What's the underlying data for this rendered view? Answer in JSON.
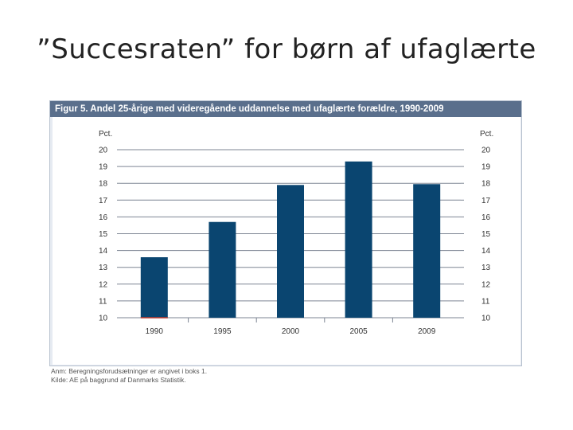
{
  "slide": {
    "title": "”Succesraten” for børn af ufaglærte"
  },
  "figure": {
    "header": "Figur 5. Andel 25-årige med videregående uddannelse med ufaglærte forældre, 1990-2009",
    "note": "Anm: Beregningsforudsætninger er angivet i boks 1.",
    "source": "Kilde: AE på baggrund af Danmarks Statistik."
  },
  "colors": {
    "bar": "#0a4570",
    "header_bg": "#5a6f8c",
    "frame_bg": "#e6ebf2",
    "axis_accent": "#c0392b"
  },
  "chart_data": {
    "type": "bar",
    "categories": [
      "1990",
      "1995",
      "2000",
      "2005",
      "2009"
    ],
    "values": [
      13.6,
      15.7,
      17.9,
      19.3,
      17.95
    ],
    "title": "Figur 5. Andel 25-årige med videregående uddannelse med ufaglærte forældre, 1990-2009",
    "ylabel_left": "Pct.",
    "ylabel_right": "Pct.",
    "ylim": [
      10,
      20
    ],
    "yticks": [
      20,
      19,
      18,
      17,
      16,
      15,
      14,
      13,
      12,
      11,
      10
    ],
    "grid": true,
    "legend": "none"
  }
}
